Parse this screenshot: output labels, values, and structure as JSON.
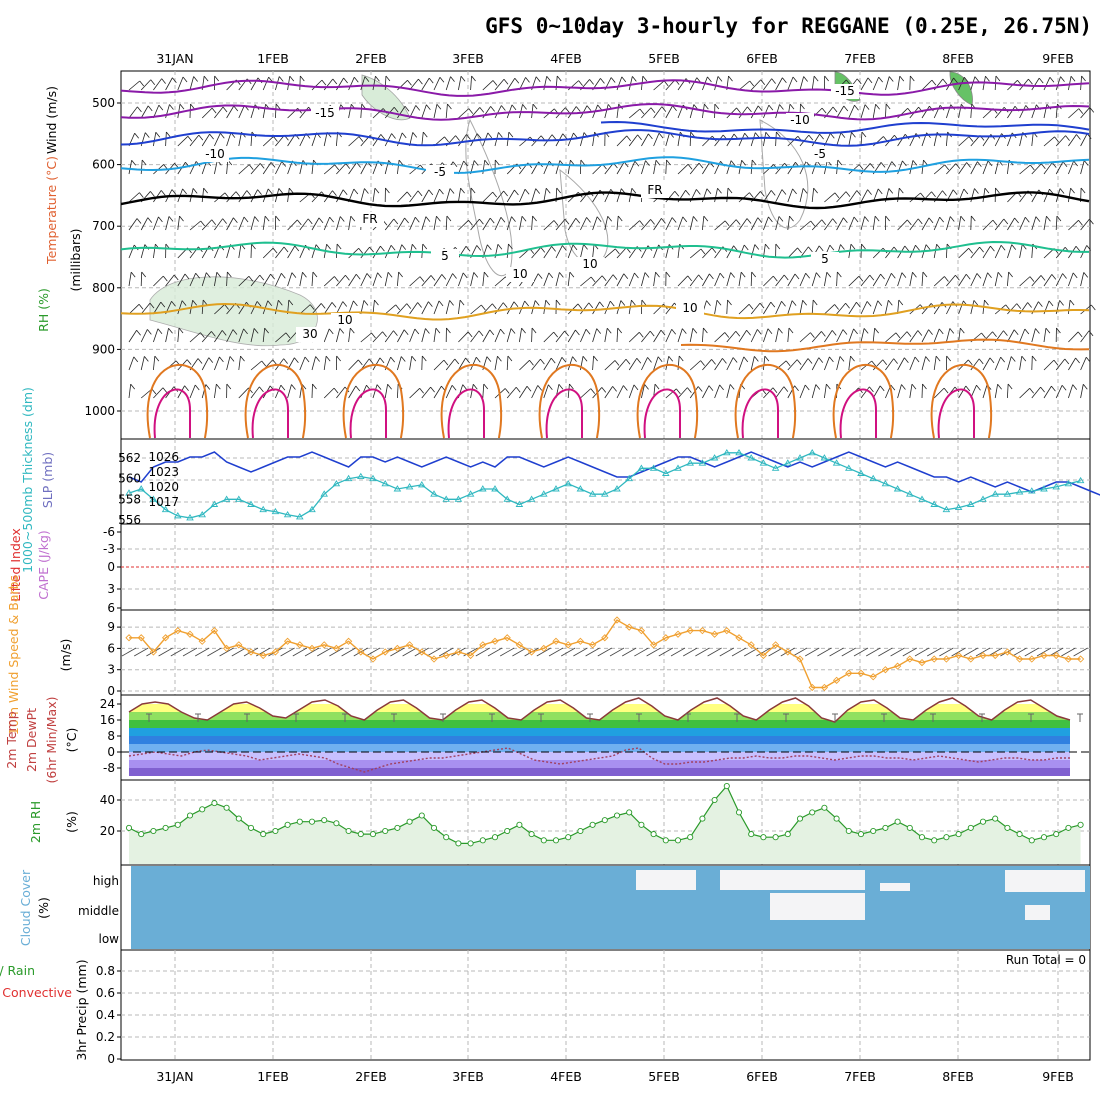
{
  "title": "GFS 0~10day 3-hourly for REGGANE (0.25E, 26.75N)",
  "dates": [
    "31JAN",
    "1FEB",
    "2FEB",
    "3FEB",
    "4FEB",
    "5FEB",
    "6FEB",
    "7FEB",
    "8FEB",
    "9FEB"
  ],
  "colors": {
    "purple": "#8a1aa8",
    "blue": "#1f3fcf",
    "cyan": "#1fa0e0",
    "black": "#000000",
    "green": "#1fbf8f",
    "orange": "#e0a020",
    "darkorange": "#e07820",
    "magenta": "#d01080",
    "slp": "#1f3fcf",
    "thick": "#30b8c0",
    "wind10": "#f0a030",
    "rh": "#2a9a2a",
    "cloud": "#6aaed6"
  },
  "panels": {
    "upper": {
      "ylabels": [
        "Wind (m/s)",
        "Temperature (°C)",
        "RH (%)",
        "(millibars)"
      ],
      "yticks": [
        "500",
        "600",
        "700",
        "800",
        "900",
        "1000"
      ],
      "contour_labels": [
        "-15",
        "-15",
        "-10",
        "-10",
        "-5",
        "-5",
        "FR",
        "FR",
        "5",
        "5",
        "10",
        "10",
        "10",
        "30",
        "10"
      ]
    },
    "slp": {
      "ylabels": [
        "1000~500mb Thickness (dm)",
        "SLP (mb)"
      ],
      "left_ticks": [
        "562",
        "560",
        "558",
        "556"
      ],
      "right_ticks": [
        "1026",
        "1023",
        "1020",
        "1017"
      ]
    },
    "cape": {
      "ylabels": [
        "Lifted Index",
        "CAPE (J/kg)"
      ],
      "yticks": [
        "-6",
        "-3",
        "0",
        "3",
        "6"
      ]
    },
    "wind10": {
      "ylabels": [
        "10m Wind Speed & Barbs",
        "(m/s)"
      ],
      "yticks": [
        "9",
        "6",
        "3",
        "0"
      ]
    },
    "temp": {
      "ylabels": [
        "2m Temp",
        "2m DewPt",
        "(6hr Min/Max)",
        "(°C)"
      ],
      "yticks": [
        "24",
        "16",
        "8",
        "0",
        "-8"
      ]
    },
    "rh": {
      "ylabels": [
        "2m RH",
        "(%)"
      ],
      "yticks": [
        "40",
        "20"
      ]
    },
    "cloud": {
      "ylabels": [
        "Cloud Cover",
        "(%)"
      ],
      "levels": [
        "high",
        "middle",
        "low"
      ]
    },
    "precip": {
      "ylabels": [
        "Total / Rain",
        "Convective",
        "3hr Precip (mm)"
      ],
      "yticks": [
        "0.8",
        "0.6",
        "0.4",
        "0.2",
        "0"
      ],
      "run_total": "Run Total = 0"
    }
  },
  "chart_data": [
    {
      "type": "line",
      "panel": "slp",
      "series": [
        {
          "name": "SLP (mb)",
          "values": [
            1022,
            1021,
            1024,
            1025,
            1025,
            1026,
            1026,
            1027,
            1025,
            1024,
            1023,
            1024,
            1025,
            1026,
            1026,
            1027,
            1026,
            1025,
            1024,
            1026,
            1026,
            1025,
            1026,
            1025,
            1024,
            1025,
            1026,
            1025,
            1024,
            1025,
            1024,
            1026,
            1026,
            1025,
            1024,
            1025,
            1026,
            1025,
            1024,
            1023,
            1022,
            1022,
            1023,
            1024,
            1025,
            1026,
            1026,
            1025,
            1024,
            1025,
            1026,
            1027,
            1026,
            1025,
            1024,
            1025,
            1024,
            1025,
            1026,
            1027,
            1026,
            1025,
            1024,
            1025,
            1024,
            1023,
            1022,
            1022,
            1021,
            1022,
            1021,
            1020,
            1021,
            1020,
            1019,
            1020,
            1021,
            1021,
            1020,
            1019,
            1018,
            1020,
            1020,
            1021
          ]
        },
        {
          "name": "1000~500mb Thickness (dm)",
          "values": [
            558.6,
            559.0,
            558.0,
            557.0,
            556.4,
            556.2,
            556.5,
            557.5,
            558.0,
            558.0,
            557.5,
            557.0,
            556.8,
            556.5,
            556.3,
            557.0,
            558.5,
            559.5,
            560.0,
            560.2,
            560.0,
            559.5,
            559.0,
            559.2,
            559.4,
            558.5,
            558.0,
            558.0,
            558.5,
            559.0,
            559.0,
            558.0,
            557.5,
            558.0,
            558.5,
            559.0,
            559.5,
            559.0,
            558.5,
            558.5,
            559.0,
            560.0,
            561.0,
            561.0,
            560.5,
            561.0,
            561.5,
            561.5,
            562.0,
            562.5,
            562.5,
            562.0,
            561.5,
            561.0,
            561.5,
            562.0,
            562.5,
            562.0,
            561.5,
            561.0,
            560.5,
            560.0,
            559.5,
            559.0,
            558.5,
            558.0,
            557.5,
            557.0,
            557.2,
            557.5,
            558.0,
            558.5,
            558.5,
            558.7,
            558.8,
            559.0,
            559.2,
            559.5,
            559.8
          ]
        }
      ]
    },
    {
      "type": "line",
      "panel": "wind10",
      "series": [
        {
          "name": "10m Wind Speed",
          "values": [
            7.5,
            7.5,
            5.5,
            7.5,
            8.5,
            8.0,
            7.0,
            8.5,
            6.0,
            6.5,
            5.5,
            5.0,
            5.5,
            7.0,
            6.5,
            6.0,
            6.5,
            6.0,
            7.0,
            5.5,
            4.5,
            5.5,
            6.0,
            6.5,
            5.5,
            4.5,
            5.0,
            5.5,
            5.0,
            6.5,
            7.0,
            7.5,
            6.5,
            5.5,
            6.0,
            7.0,
            6.5,
            7.0,
            6.5,
            7.5,
            10.0,
            9.0,
            8.5,
            6.5,
            7.5,
            8.0,
            8.5,
            8.5,
            8.0,
            8.5,
            7.5,
            6.5,
            5.0,
            6.5,
            5.5,
            4.5,
            0.5,
            0.5,
            1.5,
            2.5,
            2.5,
            2.0,
            3.0,
            3.5,
            4.5,
            4.0,
            4.5,
            4.5,
            5.0,
            4.5,
            5.0,
            5.0,
            5.5,
            4.5,
            4.5,
            5.0,
            5.0,
            4.5,
            4.5
          ]
        }
      ]
    },
    {
      "type": "area",
      "panel": "rh",
      "series": [
        {
          "name": "2m RH",
          "values": [
            22,
            18,
            20,
            22,
            24,
            30,
            34,
            38,
            35,
            28,
            22,
            18,
            20,
            24,
            26,
            26,
            27,
            25,
            20,
            18,
            18,
            20,
            22,
            26,
            30,
            22,
            16,
            12,
            12,
            14,
            16,
            20,
            24,
            18,
            14,
            14,
            16,
            20,
            24,
            27,
            30,
            32,
            24,
            18,
            14,
            14,
            16,
            28,
            40,
            49,
            32,
            18,
            16,
            16,
            18,
            28,
            32,
            35,
            28,
            20,
            18,
            20,
            22,
            26,
            22,
            16,
            14,
            16,
            18,
            22,
            26,
            28,
            22,
            18,
            14,
            16,
            18,
            22,
            24
          ]
        }
      ]
    },
    {
      "type": "line",
      "panel": "temp",
      "series": [
        {
          "name": "2m Temp",
          "values": [
            20,
            24,
            25,
            24,
            20,
            17,
            16,
            20,
            24,
            25,
            22,
            18,
            17,
            21,
            25,
            26,
            23,
            18,
            16,
            21,
            25,
            26,
            22,
            17,
            16,
            21,
            25,
            26,
            22,
            17,
            16,
            21,
            25,
            26,
            22,
            17,
            16,
            21,
            25,
            27,
            23,
            18,
            16,
            21,
            25,
            27,
            23,
            18,
            16,
            21,
            25,
            27,
            23,
            17,
            15,
            21,
            25,
            26,
            22,
            17,
            16,
            21,
            25,
            27,
            23,
            18,
            16,
            21,
            25,
            26,
            22,
            18,
            16
          ]
        },
        {
          "name": "2m DewPt",
          "values": [
            -2,
            -1,
            0,
            -1,
            -2,
            0,
            1,
            0,
            -1,
            -2,
            -4,
            -3,
            -2,
            -1,
            -2,
            -3,
            -6,
            -8,
            -10,
            -8,
            -6,
            -5,
            -4,
            -3,
            -3,
            -2,
            -1,
            0,
            1,
            2,
            -1,
            -4,
            -5,
            -6,
            -5,
            -4,
            -3,
            -2,
            1,
            2,
            -3,
            -6,
            -6,
            -5,
            -5,
            -4,
            -3,
            -3,
            -2,
            -3,
            -3,
            -2,
            -2,
            -3,
            -4,
            -3,
            -2,
            -2,
            -3,
            -3,
            -4,
            -3,
            -2,
            -3,
            -4,
            -5,
            -4,
            -3,
            -3,
            -4,
            -4,
            -3,
            -3
          ]
        }
      ]
    },
    {
      "type": "heatmap",
      "panel": "cloud",
      "series": [
        {
          "name": "high",
          "values": [
            0,
            0,
            0,
            0,
            0,
            0,
            0,
            0,
            0,
            0,
            0,
            0,
            0,
            0,
            0,
            0,
            0,
            0,
            0,
            0,
            0,
            0,
            0,
            0,
            0,
            0,
            0,
            0,
            0,
            0,
            0,
            0,
            0,
            0,
            0,
            0,
            0,
            0,
            0,
            0,
            0,
            0,
            0,
            0,
            0,
            0,
            0,
            0,
            0,
            0,
            0,
            0,
            0,
            0,
            0,
            0,
            0,
            0,
            0,
            0,
            0,
            0,
            0,
            0,
            0,
            0,
            0,
            0,
            0,
            0,
            0,
            0,
            0,
            0,
            0,
            0,
            0,
            0
          ]
        },
        {
          "name": "middle",
          "values": [
            0,
            0,
            0,
            0,
            0,
            0,
            0,
            0,
            0,
            0,
            0,
            0,
            0,
            0,
            0,
            0,
            0,
            0,
            0,
            0,
            0,
            0,
            0,
            0,
            0,
            0,
            0,
            0,
            0,
            0,
            0,
            0,
            0,
            0,
            0,
            0,
            0,
            0,
            0,
            0,
            0,
            0,
            0,
            0,
            0,
            0,
            0,
            0,
            0,
            0,
            0,
            0,
            0,
            0,
            0,
            0,
            0,
            0,
            0,
            0,
            0,
            0,
            0,
            0,
            0,
            0,
            0,
            0,
            0,
            0,
            0,
            0,
            0,
            0,
            0,
            0,
            0,
            0
          ]
        }
      ]
    },
    {
      "type": "bar",
      "panel": "precip",
      "ylim": [
        0,
        1
      ],
      "values": []
    }
  ]
}
